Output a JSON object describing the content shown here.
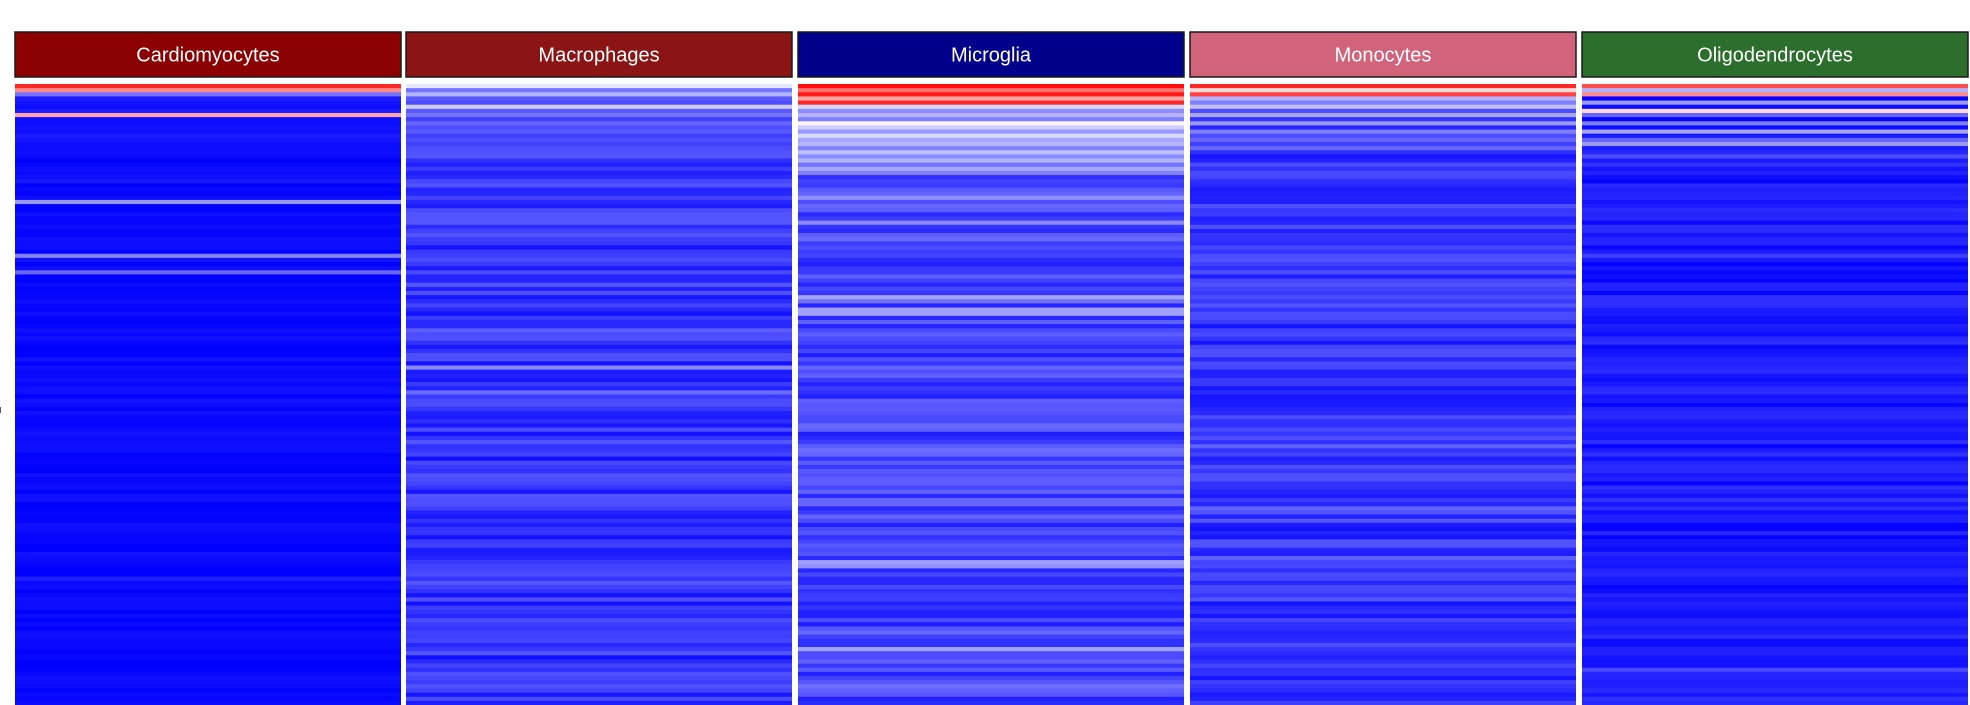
{
  "chart_data": {
    "type": "heatmap",
    "title": "",
    "xlabel": "",
    "ylabel": "",
    "color_scale": {
      "low": "#0000ff",
      "mid": "#ffffff",
      "high": "#ff0000"
    },
    "n_rows": 150,
    "panels": [
      {
        "name": "Cardiomyocytes",
        "strip_color": "#8b0000",
        "label_color": "#ffffff",
        "base_value": -0.97,
        "noise": 0.04,
        "top_rows": [
          0.85,
          0.45,
          -0.55,
          -0.9,
          -0.92,
          -0.95,
          -0.9,
          0.35,
          -0.95,
          -0.95,
          -0.93,
          -0.95,
          -0.9,
          -0.92,
          -0.95,
          -0.95
        ],
        "sparse_rows": [
          {
            "row": 14,
            "value": -0.55
          },
          {
            "row": 28,
            "value": -0.4
          },
          {
            "row": 41,
            "value": -0.5
          },
          {
            "row": 45,
            "value": -0.6
          }
        ]
      },
      {
        "name": "Macrophages",
        "strip_color": "#8b1414",
        "label_color": "#ffffff",
        "base_value": -0.8,
        "noise": 0.14,
        "top_rows": [
          -0.1,
          -0.55,
          -0.3,
          -0.65,
          -0.7,
          -0.2,
          -0.65,
          -0.55,
          -0.75,
          -0.6,
          -0.7,
          -0.65,
          -0.75,
          -0.7,
          -0.75,
          -0.7
        ],
        "sparse_rows": []
      },
      {
        "name": "Microglia",
        "strip_color": "#00008b",
        "label_color": "#ffffff",
        "base_value": -0.74,
        "noise": 0.15,
        "top_rows": [
          0.95,
          0.55,
          0.9,
          0.35,
          0.85,
          -0.15,
          -0.45,
          -0.3,
          -0.5,
          0.05,
          -0.2,
          -0.4,
          -0.15,
          -0.35,
          -0.3,
          -0.5,
          -0.25,
          -0.45,
          -0.3,
          -0.55,
          -0.35,
          -0.5
        ],
        "sparse_rows": []
      },
      {
        "name": "Monocytes",
        "strip_color": "#d1647a",
        "label_color": "#ffffff",
        "base_value": -0.8,
        "noise": 0.13,
        "top_rows": [
          0.85,
          0.15,
          0.75,
          -0.3,
          -0.5,
          -0.25,
          -0.7,
          -0.35,
          -0.8,
          -0.4,
          -0.85,
          -0.5,
          -0.7,
          -0.6,
          -0.75,
          -0.6
        ],
        "sparse_rows": []
      },
      {
        "name": "Oligodendrocytes",
        "strip_color": "#2c6e2c",
        "label_color": "#ffffff",
        "base_value": -0.9,
        "noise": 0.09,
        "top_rows": [
          0.7,
          -0.3,
          0.45,
          -0.98,
          -0.4,
          -0.95,
          0.15,
          -0.6,
          -0.98,
          -0.5,
          -0.95,
          -0.35,
          -0.9,
          -0.6,
          -0.4,
          -0.9,
          -0.85,
          -0.7,
          -0.9,
          -0.8
        ],
        "sparse_rows": []
      }
    ]
  }
}
